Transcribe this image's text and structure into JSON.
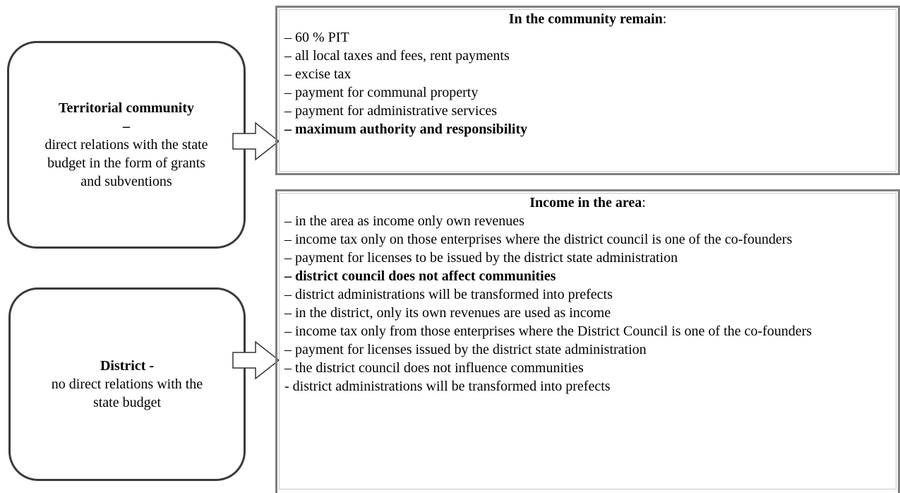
{
  "left_boxes": [
    {
      "title": "Territorial community –",
      "text": "direct relations with the state budget in the form of grants and subventions"
    },
    {
      "title": "District -",
      "text": "no direct relations with the state budget"
    }
  ],
  "right_boxes": [
    {
      "heading": "In the community remain",
      "heading_suffix": ":",
      "items": [
        {
          "text": "– 60 % PIT",
          "bold": false
        },
        {
          "text": "– all local taxes and fees, rent payments",
          "bold": false
        },
        {
          "text": "– excise tax",
          "bold": false
        },
        {
          "text": "– payment for communal property",
          "bold": false
        },
        {
          "text": "– payment for administrative services",
          "bold": false
        },
        {
          "text": "– maximum authority and responsibility",
          "bold": true
        }
      ]
    },
    {
      "heading": "Income in the area",
      "heading_suffix": ":",
      "items": [
        {
          "text": "– in the area as income only own revenues",
          "bold": false
        },
        {
          "text": "– income tax only on those enterprises where the district council is one of the co-founders",
          "bold": false
        },
        {
          "text": "– payment for licenses to be issued by the district state administration",
          "bold": false
        },
        {
          "text": "– district council does not affect communities",
          "bold": true
        },
        {
          "text": "– district administrations will be transformed into prefects",
          "bold": false
        },
        {
          "text": "– in the district, only its own revenues are used as income",
          "bold": false
        },
        {
          "text": "– income tax only from those enterprises where the District Council is one of the co-founders",
          "bold": false
        },
        {
          "text": "– payment for licenses issued by the district state administration",
          "bold": false
        },
        {
          "text": "– the district council does not influence communities",
          "bold": false
        },
        {
          "text": "- district administrations will be transformed into prefects",
          "bold": false
        }
      ]
    }
  ]
}
